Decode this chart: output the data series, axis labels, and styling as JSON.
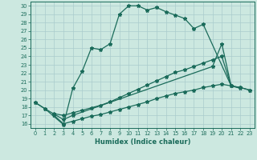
{
  "xlabel": "Humidex (Indice chaleur)",
  "background_color": "#cce8e0",
  "grid_color": "#aacccc",
  "line_color": "#1a6b5a",
  "xlim": [
    -0.5,
    23.5
  ],
  "ylim": [
    15.5,
    30.5
  ],
  "xticks": [
    0,
    1,
    2,
    3,
    4,
    5,
    6,
    7,
    8,
    9,
    10,
    11,
    12,
    13,
    14,
    15,
    16,
    17,
    18,
    19,
    20,
    21,
    22,
    23
  ],
  "yticks": [
    16,
    17,
    18,
    19,
    20,
    21,
    22,
    23,
    24,
    25,
    26,
    27,
    28,
    29,
    30
  ],
  "s1x": [
    0,
    1,
    3,
    4,
    5,
    6,
    7,
    8,
    9,
    10,
    11,
    12,
    13,
    14,
    15,
    16,
    17,
    18,
    21,
    22
  ],
  "s1y": [
    18.5,
    17.8,
    15.9,
    20.2,
    22.2,
    25.0,
    24.8,
    25.5,
    29.0,
    30.0,
    30.0,
    29.5,
    29.8,
    29.3,
    28.9,
    28.5,
    27.3,
    27.8,
    20.5,
    20.2
  ],
  "s2x": [
    0,
    1,
    3,
    4,
    19,
    20,
    21
  ],
  "s2y": [
    18.5,
    17.8,
    16.5,
    17.0,
    22.8,
    25.5,
    20.5
  ],
  "s3x": [
    2,
    3,
    4,
    5,
    6,
    7,
    8,
    9,
    10,
    11,
    12,
    13,
    14,
    15,
    16,
    17,
    18,
    19,
    20,
    21,
    22,
    23
  ],
  "s3y": [
    17.2,
    17.0,
    17.3,
    17.6,
    17.9,
    18.2,
    18.6,
    19.1,
    19.6,
    20.1,
    20.6,
    21.1,
    21.6,
    22.1,
    22.4,
    22.8,
    23.2,
    23.6,
    24.0,
    20.5,
    20.3,
    20.0
  ],
  "s4x": [
    2,
    3,
    4,
    5,
    6,
    7,
    8,
    9,
    10,
    11,
    12,
    13,
    14,
    15,
    16,
    17,
    18,
    19,
    20,
    21,
    22,
    23
  ],
  "s4y": [
    17.0,
    16.0,
    16.3,
    16.6,
    16.9,
    17.1,
    17.4,
    17.7,
    18.0,
    18.3,
    18.6,
    19.0,
    19.3,
    19.6,
    19.8,
    20.0,
    20.3,
    20.5,
    20.7,
    20.5,
    20.3,
    20.0
  ]
}
